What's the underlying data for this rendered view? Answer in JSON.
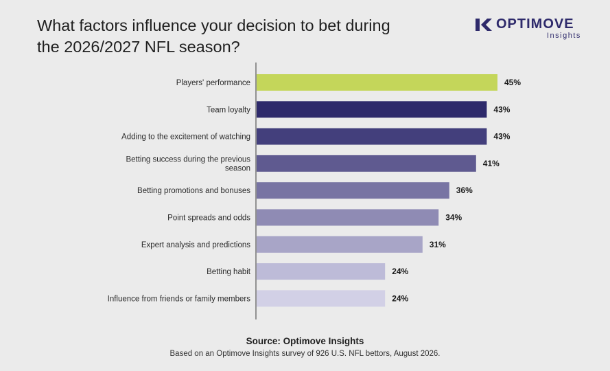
{
  "title": "What factors influence your decision to bet during the 2026/2027 NFL season?",
  "logo": {
    "name": "OPTIMOVE",
    "sub": "Insights",
    "color": "#2e2a6b"
  },
  "chart_data": {
    "type": "bar",
    "orientation": "horizontal",
    "categories": [
      "Players' performance",
      "Team loyalty",
      "Adding to the excitement of watching",
      "Betting success during the previous season",
      "Betting promotions and bonuses",
      "Point spreads and odds",
      "Expert analysis and predictions",
      "Betting habit",
      "Influence from friends or family members"
    ],
    "category_lines": [
      [
        "Players' performance"
      ],
      [
        "Team loyalty"
      ],
      [
        "Adding to the excitement of watching"
      ],
      [
        "Betting success during the previous",
        "season"
      ],
      [
        "Betting promotions and bonuses"
      ],
      [
        "Point spreads and odds"
      ],
      [
        "Expert analysis and predictions"
      ],
      [
        "Betting habit"
      ],
      [
        "Influence from friends or family members"
      ]
    ],
    "values": [
      45,
      43,
      43,
      41,
      36,
      34,
      31,
      24,
      24
    ],
    "value_labels": [
      "45%",
      "43%",
      "43%",
      "41%",
      "36%",
      "34%",
      "31%",
      "24%",
      "24%"
    ],
    "colors": [
      "#c4d65a",
      "#2e2a6b",
      "#433f7c",
      "#5f5a90",
      "#7874a3",
      "#8f8bb4",
      "#a8a5c7",
      "#bdbbd8",
      "#d2d0e6"
    ],
    "xlim": [
      0,
      45
    ],
    "grid": false,
    "legend": "none"
  },
  "source": "Source: Optimove Insights",
  "note": "Based on an Optimove Insights survey of 926 U.S. NFL bettors, August 2026."
}
